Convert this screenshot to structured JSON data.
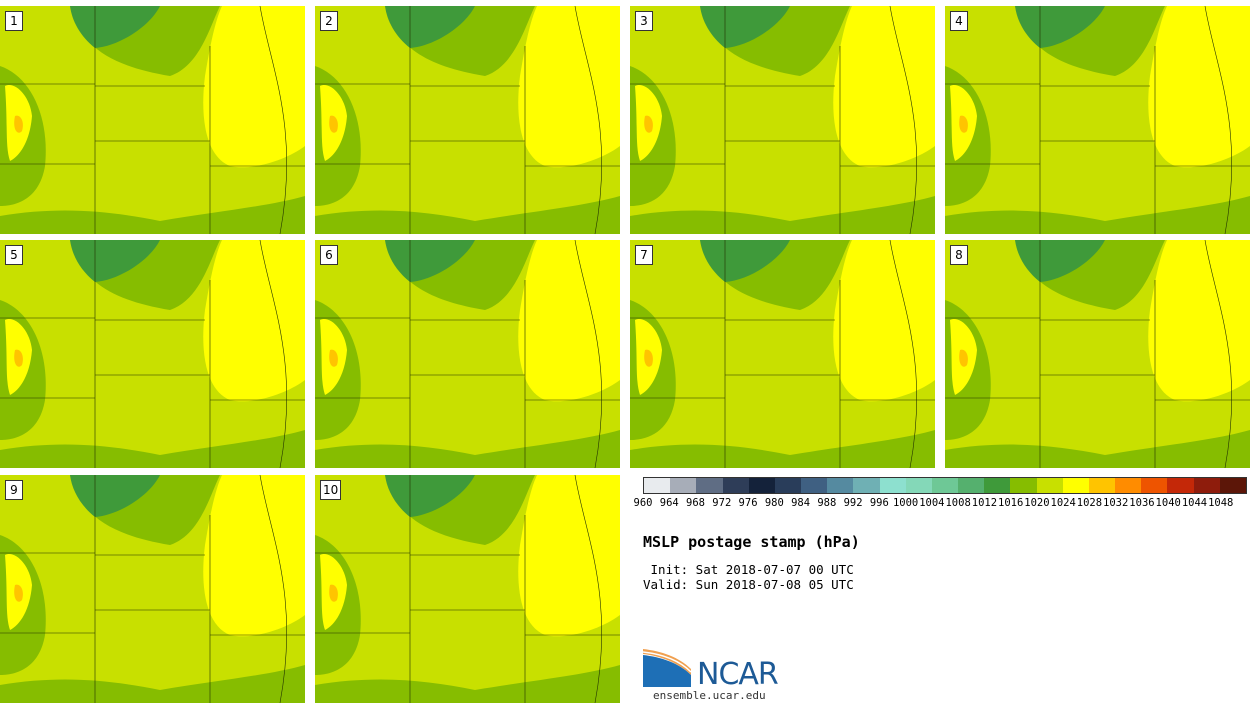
{
  "figure": {
    "title": "MSLP postage stamp (hPa)",
    "init_line": " Init: Sat 2018-07-07 00 UTC",
    "valid_line": "Valid: Sun 2018-07-08 05 UTC"
  },
  "panels": [
    {
      "label": "1"
    },
    {
      "label": "2"
    },
    {
      "label": "3"
    },
    {
      "label": "4"
    },
    {
      "label": "5"
    },
    {
      "label": "6"
    },
    {
      "label": "7"
    },
    {
      "label": "8"
    },
    {
      "label": "9"
    },
    {
      "label": "10"
    }
  ],
  "colorbar": {
    "ticks": [
      "960",
      "964",
      "968",
      "972",
      "976",
      "980",
      "984",
      "988",
      "992",
      "996",
      "1000",
      "1004",
      "1008",
      "1012",
      "1016",
      "1020",
      "1024",
      "1028",
      "1032",
      "1036",
      "1040",
      "1044",
      "1048"
    ],
    "colors": [
      "#e8ebee",
      "#a7adb8",
      "#5f6d84",
      "#2e3d58",
      "#14223a",
      "#293d5a",
      "#3f6082",
      "#558aa0",
      "#6fb0b4",
      "#8de0cf",
      "#84d8b8",
      "#6ec896",
      "#55b06e",
      "#3f9a3a",
      "#86bd00",
      "#c8e000",
      "#ffff00",
      "#ffc400",
      "#ff8c00",
      "#ee5400",
      "#c42808",
      "#8e1c0c",
      "#5c1608"
    ]
  },
  "branding": {
    "logo_text": "NCAR",
    "site": "ensemble.ucar.edu"
  }
}
